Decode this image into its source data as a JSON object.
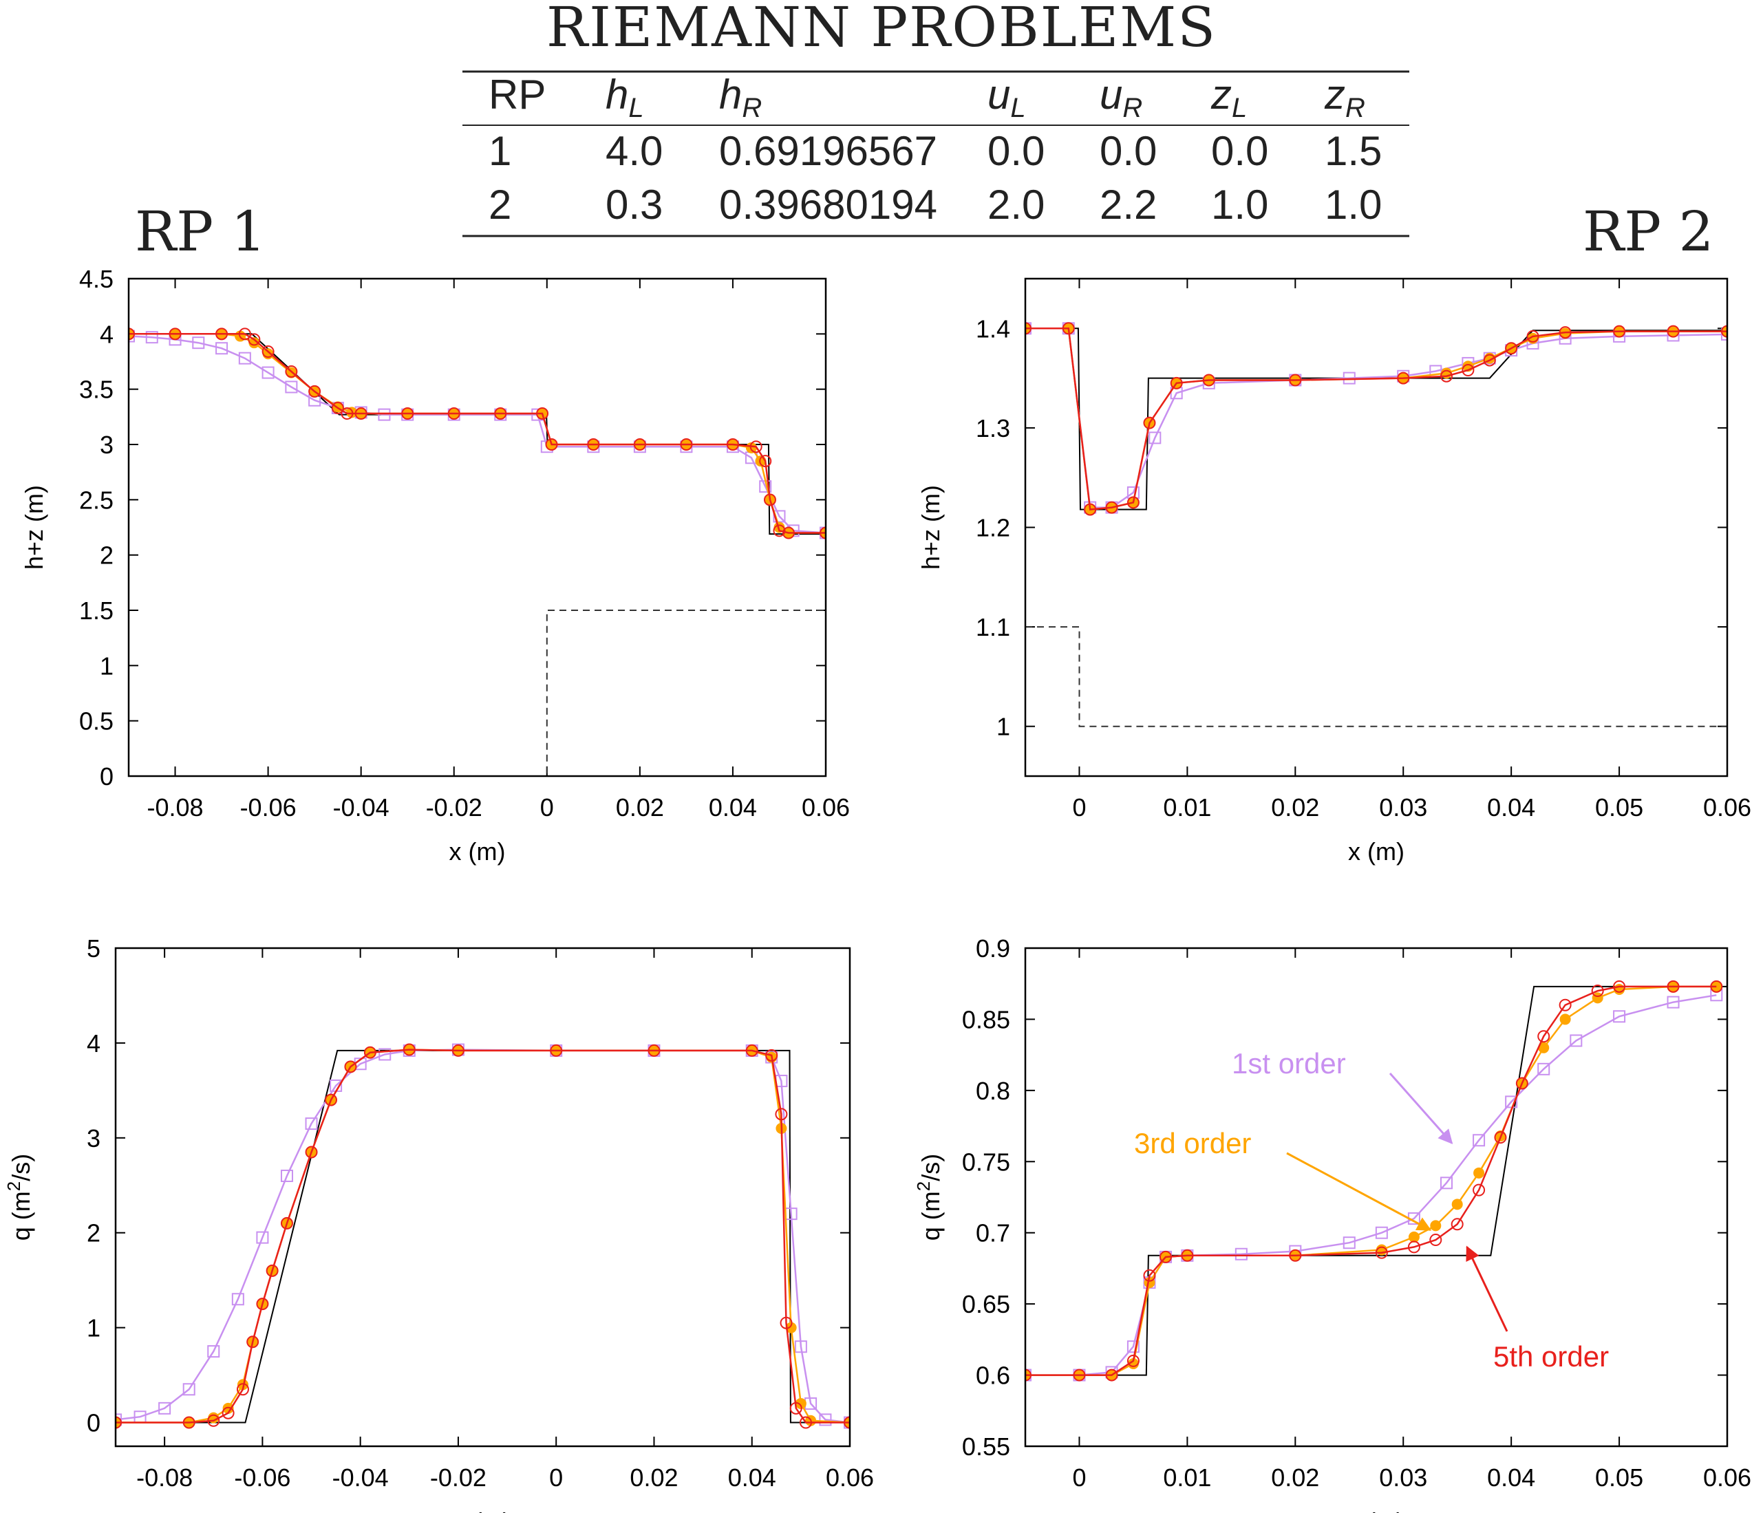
{
  "title": "RIEMANN PROBLEMS",
  "table": {
    "headers": [
      {
        "base": "RP",
        "sub": ""
      },
      {
        "base": "h",
        "sub": "L"
      },
      {
        "base": "h",
        "sub": "R"
      },
      {
        "base": "u",
        "sub": "L"
      },
      {
        "base": "u",
        "sub": "R"
      },
      {
        "base": "z",
        "sub": "L"
      },
      {
        "base": "z",
        "sub": "R"
      }
    ],
    "rows": [
      [
        "1",
        "4.0",
        "0.69196567",
        "0.0",
        "0.0",
        "0.0",
        "1.5"
      ],
      [
        "2",
        "0.3",
        "0.39680194",
        "2.0",
        "2.2",
        "1.0",
        "1.0"
      ]
    ]
  },
  "panel_labels": {
    "left": "RP 1",
    "right": "RP 2"
  },
  "colors": {
    "first": "#c890f0",
    "third": "#ffa500",
    "fifth": "#e8201c",
    "exact": "#000000"
  },
  "annotations": [
    {
      "text": "1st order",
      "color": "#c890f0"
    },
    {
      "text": "3rd order",
      "color": "#ffa500"
    },
    {
      "text": "5th order",
      "color": "#e8201c"
    }
  ],
  "chart_data": [
    {
      "type": "line",
      "xlabel": "x (m)",
      "ylabel": "h+z (m)",
      "xlim": [
        -0.09,
        0.06
      ],
      "ylim": [
        0,
        4.5
      ],
      "xticks": [
        "-0.08",
        "-0.06",
        "-0.04",
        "-0.02",
        "0",
        "0.02",
        "0.04",
        "0.06"
      ],
      "yticks": [
        "0",
        "0.5",
        "1",
        "1.5",
        "2",
        "2.5",
        "3",
        "3.5",
        "4",
        "4.5"
      ],
      "series": [
        {
          "name": "1st order",
          "style": "square",
          "x": [
            -0.09,
            -0.085,
            -0.08,
            -0.075,
            -0.07,
            -0.065,
            -0.06,
            -0.055,
            -0.05,
            -0.045,
            -0.04,
            -0.035,
            -0.03,
            -0.02,
            -0.01,
            -0.002,
            0,
            0.01,
            0.02,
            0.03,
            0.04,
            0.044,
            0.047,
            0.05,
            0.053,
            0.06
          ],
          "y": [
            3.98,
            3.97,
            3.95,
            3.92,
            3.87,
            3.78,
            3.65,
            3.52,
            3.4,
            3.33,
            3.29,
            3.27,
            3.27,
            3.27,
            3.27,
            3.27,
            2.98,
            2.98,
            2.98,
            2.98,
            2.98,
            2.88,
            2.62,
            2.35,
            2.22,
            2.2
          ]
        },
        {
          "name": "3rd order",
          "style": "filled",
          "x": [
            -0.09,
            -0.08,
            -0.07,
            -0.066,
            -0.063,
            -0.06,
            -0.055,
            -0.05,
            -0.045,
            -0.042,
            -0.04,
            -0.03,
            -0.02,
            -0.01,
            -0.001,
            0.001,
            0.01,
            0.02,
            0.03,
            0.04,
            0.044,
            0.046,
            0.048,
            0.05,
            0.052,
            0.06
          ],
          "y": [
            4.0,
            4.0,
            4.0,
            3.98,
            3.92,
            3.82,
            3.65,
            3.48,
            3.34,
            3.29,
            3.28,
            3.28,
            3.28,
            3.28,
            3.28,
            3.0,
            3.0,
            3.0,
            3.0,
            3.0,
            2.97,
            2.85,
            2.5,
            2.25,
            2.2,
            2.2
          ]
        },
        {
          "name": "5th order",
          "style": "open",
          "x": [
            -0.09,
            -0.08,
            -0.07,
            -0.065,
            -0.063,
            -0.06,
            -0.055,
            -0.05,
            -0.045,
            -0.043,
            -0.04,
            -0.03,
            -0.02,
            -0.01,
            -0.001,
            0.001,
            0.01,
            0.02,
            0.03,
            0.04,
            0.045,
            0.047,
            0.048,
            0.05,
            0.052,
            0.06
          ],
          "y": [
            4.0,
            4.0,
            4.0,
            4.0,
            3.95,
            3.84,
            3.66,
            3.48,
            3.33,
            3.28,
            3.28,
            3.28,
            3.28,
            3.28,
            3.28,
            3.0,
            3.0,
            3.0,
            3.0,
            3.0,
            2.98,
            2.85,
            2.5,
            2.22,
            2.2,
            2.2
          ]
        },
        {
          "name": "exact",
          "style": "line",
          "x": [
            -0.09,
            -0.0635,
            -0.0447,
            -0.0001,
            0.0001,
            0.0477,
            0.0479,
            0.06
          ],
          "y": [
            4.0,
            4.0,
            3.27,
            3.27,
            3.0,
            3.0,
            2.19,
            2.19
          ]
        },
        {
          "name": "bed",
          "style": "dashed",
          "x": [
            -0.09,
            0,
            0,
            0.06
          ],
          "y": [
            0,
            0,
            1.5,
            1.5
          ]
        }
      ]
    },
    {
      "type": "line",
      "xlabel": "x (m)",
      "ylabel": "h+z (m)",
      "xlim": [
        -0.005,
        0.06
      ],
      "ylim": [
        0.95,
        1.45
      ],
      "xticks": [
        "0",
        "0.01",
        "0.02",
        "0.03",
        "0.04",
        "0.05",
        "0.06"
      ],
      "yticks": [
        "1",
        "1.1",
        "1.2",
        "1.3",
        "1.4"
      ],
      "series": [
        {
          "name": "1st order",
          "style": "square",
          "x": [
            -0.005,
            -0.001,
            0.001,
            0.003,
            0.005,
            0.007,
            0.009,
            0.012,
            0.02,
            0.025,
            0.03,
            0.033,
            0.036,
            0.038,
            0.04,
            0.042,
            0.045,
            0.05,
            0.055,
            0.06
          ],
          "y": [
            1.4,
            1.4,
            1.22,
            1.22,
            1.235,
            1.29,
            1.335,
            1.345,
            1.348,
            1.35,
            1.352,
            1.357,
            1.365,
            1.37,
            1.378,
            1.385,
            1.39,
            1.392,
            1.393,
            1.394
          ]
        },
        {
          "name": "3rd order",
          "style": "filled",
          "x": [
            -0.005,
            -0.001,
            0.001,
            0.003,
            0.005,
            0.0065,
            0.009,
            0.012,
            0.02,
            0.03,
            0.034,
            0.036,
            0.038,
            0.04,
            0.042,
            0.045,
            0.05,
            0.055,
            0.06
          ],
          "y": [
            1.4,
            1.4,
            1.218,
            1.22,
            1.225,
            1.305,
            1.345,
            1.348,
            1.348,
            1.35,
            1.355,
            1.362,
            1.37,
            1.38,
            1.39,
            1.395,
            1.397,
            1.397,
            1.397
          ]
        },
        {
          "name": "5th order",
          "style": "open",
          "x": [
            -0.005,
            -0.001,
            0.001,
            0.003,
            0.005,
            0.0065,
            0.009,
            0.012,
            0.02,
            0.03,
            0.034,
            0.036,
            0.038,
            0.04,
            0.042,
            0.045,
            0.05,
            0.055,
            0.06
          ],
          "y": [
            1.4,
            1.4,
            1.218,
            1.22,
            1.225,
            1.305,
            1.345,
            1.348,
            1.348,
            1.35,
            1.352,
            1.358,
            1.368,
            1.38,
            1.392,
            1.396,
            1.397,
            1.397,
            1.397
          ]
        },
        {
          "name": "exact",
          "style": "line",
          "x": [
            -0.005,
            -0.0001,
            0.0001,
            0.0062,
            0.0064,
            0.038,
            0.042,
            0.06
          ],
          "y": [
            1.4,
            1.4,
            1.218,
            1.218,
            1.35,
            1.35,
            1.398,
            1.398
          ]
        },
        {
          "name": "bed",
          "style": "dashed",
          "x": [
            -0.005,
            0,
            0,
            0.06
          ],
          "y": [
            1.1,
            1.1,
            1.0,
            1.0
          ]
        }
      ]
    },
    {
      "type": "line",
      "xlabel": "x (m)",
      "ylabel": "q (m2/s)",
      "xlim": [
        -0.09,
        0.06
      ],
      "ylim": [
        -0.25,
        5
      ],
      "xticks": [
        "-0.08",
        "-0.06",
        "-0.04",
        "-0.02",
        "0",
        "0.02",
        "0.04",
        "0.06"
      ],
      "yticks": [
        "0",
        "1",
        "2",
        "3",
        "4",
        "5"
      ],
      "series": [
        {
          "name": "1st order",
          "style": "square",
          "x": [
            -0.09,
            -0.085,
            -0.08,
            -0.075,
            -0.07,
            -0.065,
            -0.06,
            -0.055,
            -0.05,
            -0.045,
            -0.04,
            -0.035,
            -0.03,
            -0.02,
            0,
            0.02,
            0.04,
            0.044,
            0.046,
            0.048,
            0.05,
            0.052,
            0.055,
            0.06
          ],
          "y": [
            0.03,
            0.06,
            0.15,
            0.35,
            0.75,
            1.3,
            1.95,
            2.6,
            3.15,
            3.55,
            3.78,
            3.88,
            3.92,
            3.93,
            3.92,
            3.92,
            3.92,
            3.85,
            3.6,
            2.2,
            0.8,
            0.2,
            0.03,
            0.0
          ]
        },
        {
          "name": "3rd order",
          "style": "filled",
          "x": [
            -0.09,
            -0.075,
            -0.07,
            -0.067,
            -0.064,
            -0.062,
            -0.06,
            -0.058,
            -0.055,
            -0.05,
            -0.046,
            -0.042,
            -0.038,
            -0.03,
            -0.02,
            0,
            0.02,
            0.04,
            0.044,
            0.046,
            0.048,
            0.05,
            0.052,
            0.06
          ],
          "y": [
            0,
            0,
            0.05,
            0.15,
            0.4,
            0.85,
            1.25,
            1.6,
            2.1,
            2.85,
            3.4,
            3.75,
            3.9,
            3.93,
            3.92,
            3.92,
            3.92,
            3.92,
            3.85,
            3.1,
            1.0,
            0.2,
            0.02,
            0
          ]
        },
        {
          "name": "5th order",
          "style": "open",
          "x": [
            -0.09,
            -0.075,
            -0.07,
            -0.067,
            -0.064,
            -0.062,
            -0.06,
            -0.058,
            -0.055,
            -0.05,
            -0.046,
            -0.042,
            -0.038,
            -0.03,
            -0.02,
            0,
            0.02,
            0.04,
            0.044,
            0.046,
            0.047,
            0.049,
            0.051,
            0.06
          ],
          "y": [
            0,
            0,
            0.02,
            0.1,
            0.35,
            0.85,
            1.25,
            1.6,
            2.1,
            2.85,
            3.4,
            3.75,
            3.9,
            3.93,
            3.92,
            3.92,
            3.92,
            3.92,
            3.87,
            3.25,
            1.05,
            0.15,
            0,
            0
          ]
        },
        {
          "name": "exact",
          "style": "line",
          "x": [
            -0.09,
            -0.0635,
            -0.0447,
            0.0477,
            0.0479,
            0.06
          ],
          "y": [
            0,
            0,
            3.92,
            3.92,
            0,
            0
          ]
        }
      ]
    },
    {
      "type": "line",
      "xlabel": "x (m)",
      "ylabel": "q (m2/s)",
      "xlim": [
        -0.005,
        0.06
      ],
      "ylim": [
        0.55,
        0.9
      ],
      "xticks": [
        "0",
        "0.01",
        "0.02",
        "0.03",
        "0.04",
        "0.05",
        "0.06"
      ],
      "yticks": [
        "0.55",
        "0.6",
        "0.65",
        "0.7",
        "0.75",
        "0.8",
        "0.85",
        "0.9"
      ],
      "series": [
        {
          "name": "1st order",
          "style": "square",
          "x": [
            -0.005,
            0,
            0.003,
            0.005,
            0.0065,
            0.008,
            0.01,
            0.015,
            0.02,
            0.025,
            0.028,
            0.031,
            0.034,
            0.037,
            0.04,
            0.043,
            0.046,
            0.05,
            0.055,
            0.059
          ],
          "y": [
            0.6,
            0.6,
            0.602,
            0.62,
            0.665,
            0.683,
            0.684,
            0.685,
            0.687,
            0.693,
            0.7,
            0.71,
            0.735,
            0.765,
            0.792,
            0.815,
            0.835,
            0.852,
            0.862,
            0.867
          ]
        },
        {
          "name": "3rd order",
          "style": "filled",
          "x": [
            -0.005,
            0,
            0.003,
            0.005,
            0.0065,
            0.008,
            0.01,
            0.02,
            0.028,
            0.031,
            0.033,
            0.035,
            0.037,
            0.039,
            0.041,
            0.043,
            0.045,
            0.048,
            0.05,
            0.055,
            0.059
          ],
          "y": [
            0.6,
            0.6,
            0.6,
            0.608,
            0.665,
            0.683,
            0.684,
            0.684,
            0.688,
            0.697,
            0.705,
            0.72,
            0.742,
            0.768,
            0.805,
            0.83,
            0.85,
            0.865,
            0.871,
            0.873,
            0.873
          ]
        },
        {
          "name": "5th order",
          "style": "open",
          "x": [
            -0.005,
            0,
            0.003,
            0.005,
            0.0065,
            0.008,
            0.01,
            0.02,
            0.028,
            0.031,
            0.033,
            0.035,
            0.037,
            0.039,
            0.041,
            0.043,
            0.045,
            0.048,
            0.05,
            0.055,
            0.059
          ],
          "y": [
            0.6,
            0.6,
            0.6,
            0.61,
            0.67,
            0.683,
            0.684,
            0.684,
            0.686,
            0.69,
            0.695,
            0.706,
            0.73,
            0.767,
            0.805,
            0.838,
            0.86,
            0.87,
            0.873,
            0.873,
            0.873
          ]
        },
        {
          "name": "exact",
          "style": "line",
          "x": [
            -0.005,
            0.0062,
            0.0064,
            0.0381,
            0.0421,
            0.06
          ],
          "y": [
            0.6,
            0.6,
            0.684,
            0.684,
            0.873,
            0.873
          ]
        }
      ]
    }
  ]
}
